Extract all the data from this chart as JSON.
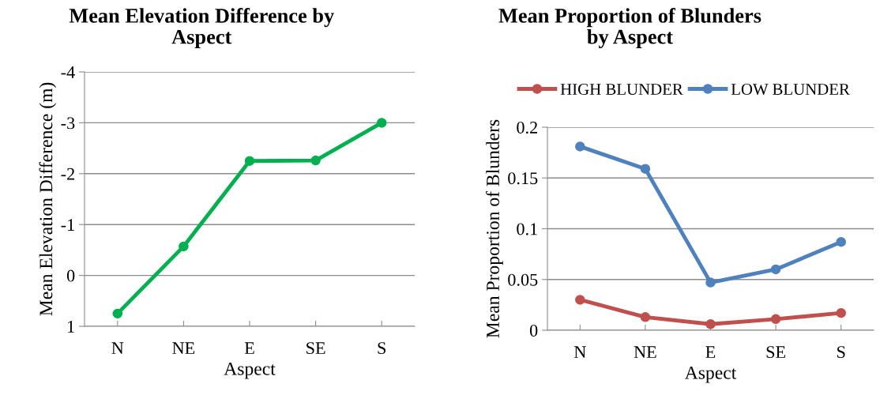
{
  "chart_data": [
    {
      "type": "line",
      "title": "Mean Elevation Difference by\nAspect",
      "xlabel": "Aspect",
      "ylabel": "Mean Elevation Difference (m)",
      "categories": [
        "N",
        "NE",
        "E",
        "SE",
        "S"
      ],
      "series": [
        {
          "color": "#00b050",
          "values": [
            0.75,
            -0.57,
            -2.25,
            -2.26,
            -3.0
          ]
        }
      ],
      "ylim": [
        1,
        -4
      ],
      "yticks": [
        1,
        0,
        -1,
        -2,
        -3,
        -4
      ],
      "grid": "y",
      "marker": "circle",
      "line_style": "solid",
      "legend": false
    },
    {
      "type": "line",
      "title": "Mean Proportion of Blunders\nby Aspect",
      "xlabel": "Aspect",
      "ylabel": "Mean Proportion of Blunders",
      "categories": [
        "N",
        "NE",
        "E",
        "SE",
        "S"
      ],
      "series": [
        {
          "name": "HIGH BLUNDER",
          "color": "#c0504d",
          "values": [
            0.03,
            0.013,
            0.006,
            0.011,
            0.017
          ]
        },
        {
          "name": "LOW BLUNDER",
          "color": "#4f81bd",
          "values": [
            0.181,
            0.159,
            0.047,
            0.06,
            0.087
          ]
        }
      ],
      "ylim": [
        0,
        0.2
      ],
      "yticks": [
        0,
        0.05,
        0.1,
        0.15,
        0.2
      ],
      "grid": "y",
      "marker": "circle",
      "line_style": "solid",
      "legend": "top"
    }
  ]
}
